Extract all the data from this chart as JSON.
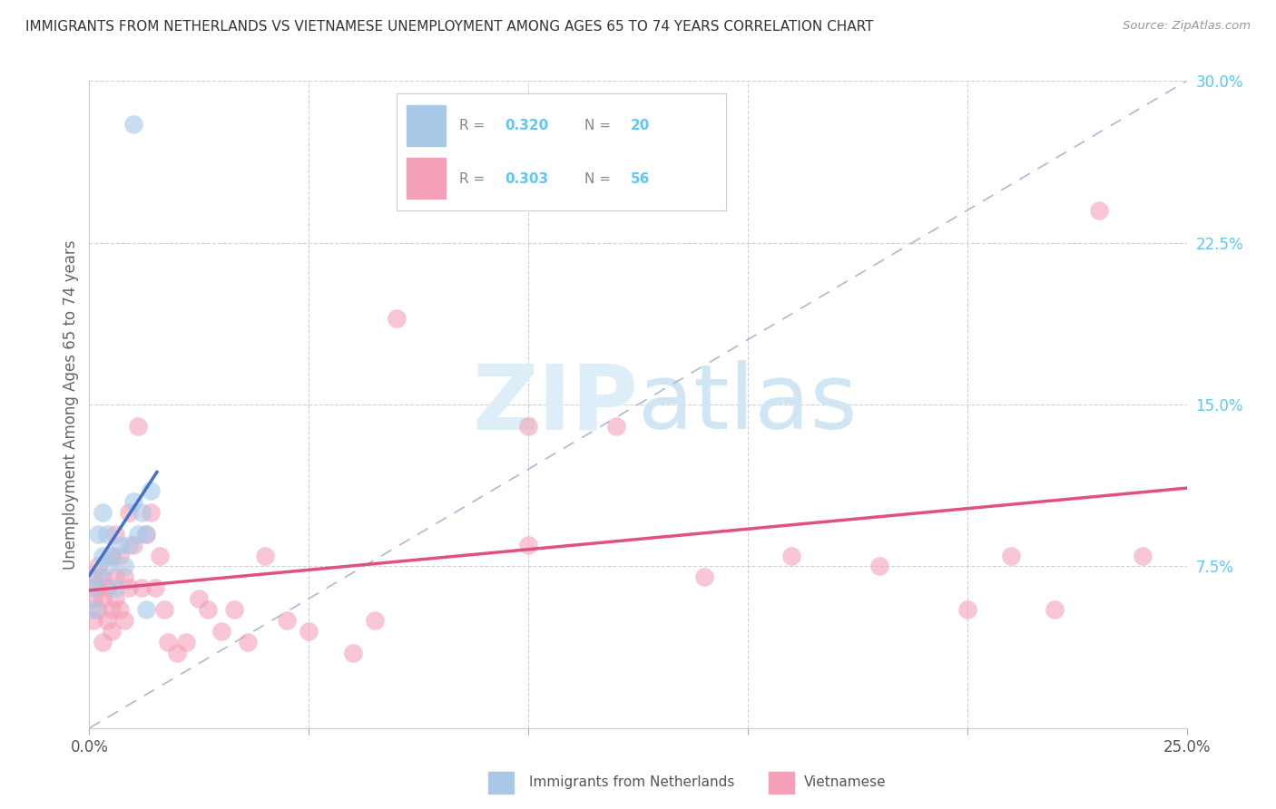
{
  "title": "IMMIGRANTS FROM NETHERLANDS VS VIETNAMESE UNEMPLOYMENT AMONG AGES 65 TO 74 YEARS CORRELATION CHART",
  "source": "Source: ZipAtlas.com",
  "ylabel": "Unemployment Among Ages 65 to 74 years",
  "xlim": [
    0,
    0.25
  ],
  "ylim": [
    0,
    0.3
  ],
  "yticks_right": [
    0.3,
    0.225,
    0.15,
    0.075,
    0.0
  ],
  "ytick_labels_right": [
    "30.0%",
    "22.5%",
    "15.0%",
    "7.5%",
    ""
  ],
  "legend_label1": "Immigrants from Netherlands",
  "legend_label2": "Vietnamese",
  "series1_color": "#a8c8e8",
  "series2_color": "#f4a0b8",
  "trendline1_color": "#4472c4",
  "trendline2_color": "#e05080",
  "diag_color": "#a0b4d0",
  "nl_x": [
    0.001,
    0.001,
    0.002,
    0.002,
    0.003,
    0.003,
    0.004,
    0.004,
    0.005,
    0.006,
    0.007,
    0.008,
    0.009,
    0.01,
    0.011,
    0.012,
    0.013,
    0.014,
    0.01,
    0.013
  ],
  "nl_y": [
    0.055,
    0.065,
    0.07,
    0.09,
    0.08,
    0.1,
    0.075,
    0.09,
    0.08,
    0.065,
    0.085,
    0.075,
    0.085,
    0.105,
    0.09,
    0.1,
    0.09,
    0.11,
    0.28,
    0.055
  ],
  "vn_x": [
    0.001,
    0.001,
    0.001,
    0.002,
    0.002,
    0.002,
    0.003,
    0.003,
    0.003,
    0.004,
    0.004,
    0.005,
    0.005,
    0.005,
    0.006,
    0.006,
    0.006,
    0.007,
    0.007,
    0.008,
    0.008,
    0.009,
    0.009,
    0.01,
    0.011,
    0.012,
    0.013,
    0.014,
    0.015,
    0.016,
    0.017,
    0.018,
    0.02,
    0.022,
    0.025,
    0.027,
    0.03,
    0.033,
    0.036,
    0.04,
    0.045,
    0.05,
    0.06,
    0.065,
    0.07,
    0.1,
    0.12,
    0.14,
    0.16,
    0.18,
    0.2,
    0.21,
    0.22,
    0.23,
    0.24,
    0.1
  ],
  "vn_y": [
    0.05,
    0.06,
    0.07,
    0.055,
    0.065,
    0.075,
    0.06,
    0.07,
    0.04,
    0.065,
    0.05,
    0.08,
    0.055,
    0.045,
    0.09,
    0.06,
    0.07,
    0.08,
    0.055,
    0.07,
    0.05,
    0.065,
    0.1,
    0.085,
    0.14,
    0.065,
    0.09,
    0.1,
    0.065,
    0.08,
    0.055,
    0.04,
    0.035,
    0.04,
    0.06,
    0.055,
    0.045,
    0.055,
    0.04,
    0.08,
    0.05,
    0.045,
    0.035,
    0.05,
    0.19,
    0.085,
    0.14,
    0.07,
    0.08,
    0.075,
    0.055,
    0.08,
    0.055,
    0.24,
    0.08,
    0.14
  ]
}
